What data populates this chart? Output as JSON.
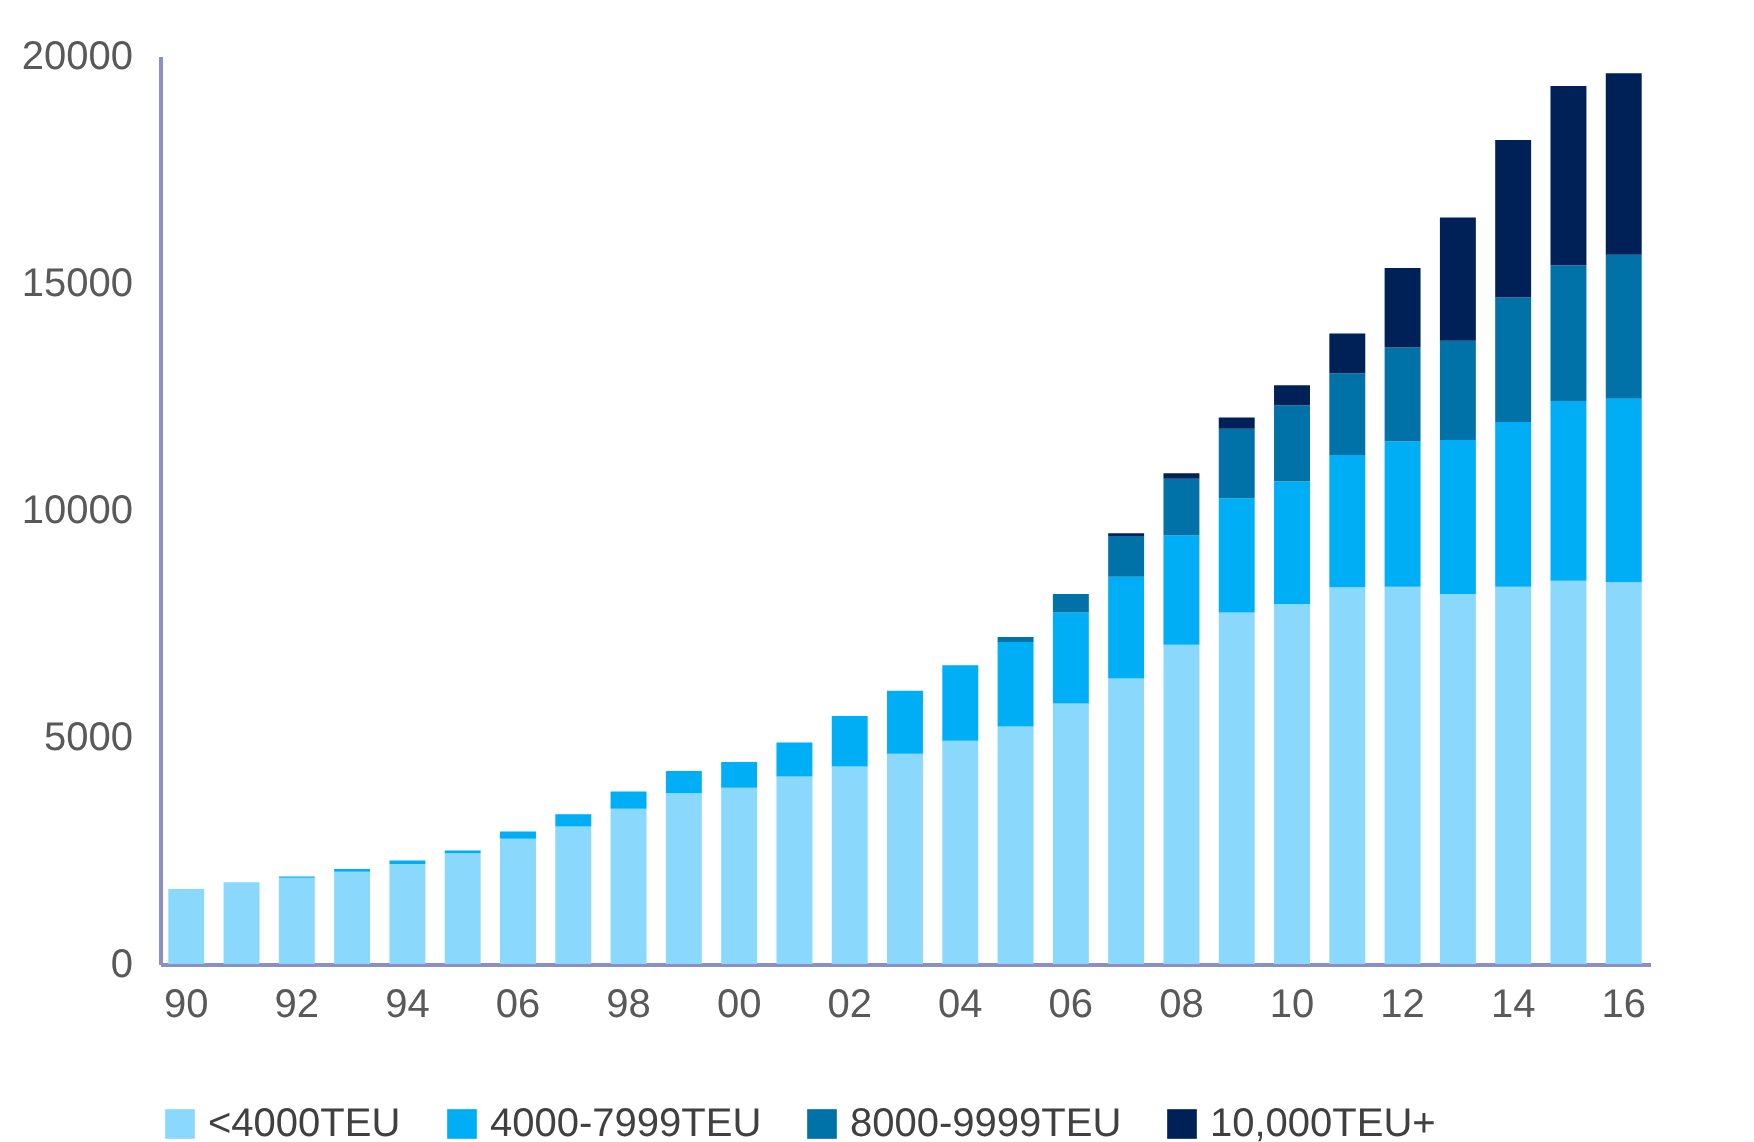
{
  "chart_data": {
    "type": "bar",
    "stacked": true,
    "categories": [
      "90",
      null,
      "92",
      null,
      "94",
      null,
      "06",
      null,
      "98",
      null,
      "00",
      null,
      "02",
      null,
      "04",
      null,
      "06",
      null,
      "08",
      null,
      "10",
      null,
      "12",
      null,
      "14",
      null,
      "16"
    ],
    "series": [
      {
        "name": "<4000TEU",
        "color": "#8ad8fc",
        "values": [
          1650,
          1800,
          1900,
          2030,
          2200,
          2440,
          2760,
          3030,
          3420,
          3760,
          3880,
          4130,
          4350,
          4630,
          4920,
          5230,
          5740,
          6290,
          7030,
          7740,
          7930,
          8300,
          8310,
          8150,
          8310,
          8440,
          8410
        ]
      },
      {
        "name": "4000-7999TEU",
        "color": "#00aef5",
        "values": [
          null,
          null,
          30,
          60,
          80,
          60,
          160,
          270,
          380,
          490,
          570,
          750,
          1110,
          1390,
          1660,
          1860,
          2000,
          2240,
          2410,
          2520,
          2700,
          2910,
          3200,
          3390,
          3630,
          3960,
          4040
        ]
      },
      {
        "name": "8000-9999TEU",
        "color": "#0072a8",
        "values": [
          null,
          null,
          null,
          null,
          null,
          null,
          null,
          null,
          null,
          null,
          null,
          null,
          null,
          null,
          null,
          110,
          410,
          900,
          1250,
          1530,
          1680,
          1800,
          2070,
          2190,
          2740,
          2990,
          3170
        ]
      },
      {
        "name": "10,000TEU+",
        "color": "#002158",
        "values": [
          null,
          null,
          null,
          null,
          null,
          null,
          null,
          null,
          null,
          null,
          null,
          null,
          null,
          null,
          null,
          null,
          null,
          60,
          120,
          250,
          440,
          880,
          1750,
          2710,
          3470,
          3950,
          4000
        ]
      }
    ],
    "ylim": [
      0,
      20000
    ],
    "yticks": [
      0,
      5000,
      10000,
      15000,
      20000
    ],
    "grid": false,
    "legend": "bottom"
  }
}
